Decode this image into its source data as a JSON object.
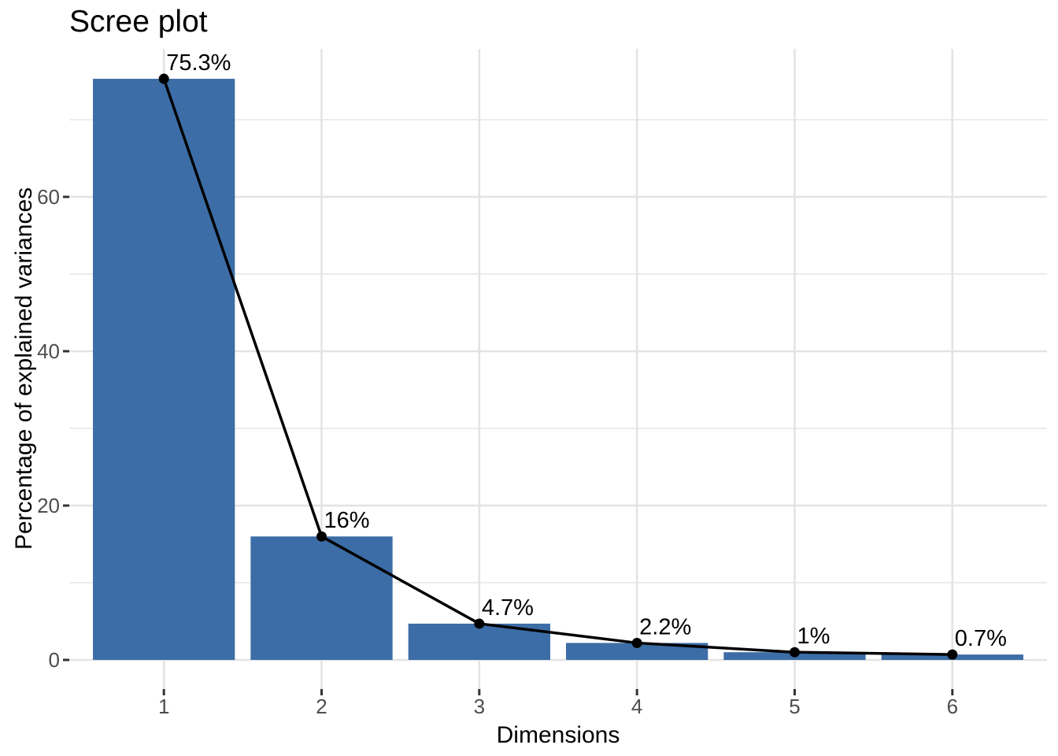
{
  "chart_data": {
    "type": "bar",
    "overlay": "line-with-points",
    "title": "Scree plot",
    "xlabel": "Dimensions",
    "ylabel": "Percentage of explained variances",
    "categories": [
      "1",
      "2",
      "3",
      "4",
      "5",
      "6"
    ],
    "values": [
      75.3,
      16,
      4.7,
      2.2,
      1,
      0.7
    ],
    "value_labels": [
      "75.3%",
      "16%",
      "4.7%",
      "2.2%",
      "1%",
      "0.7%"
    ],
    "y_ticks": [
      0,
      20,
      40,
      60
    ],
    "y_minor_gridlines": [
      10,
      30,
      50,
      70
    ],
    "ylim": [
      -3.8,
      79.1
    ],
    "grid": "on",
    "legend": "none",
    "colors": {
      "bar_fill": "#3C6DA6",
      "line": "#000000",
      "point": "#000000",
      "grid_major": "#E3E3E3",
      "grid_minor": "#ECECEC",
      "tick_mark": "#333333",
      "tick_label": "#4D4D4D",
      "text": "#000000",
      "background": "#FFFFFF"
    }
  }
}
